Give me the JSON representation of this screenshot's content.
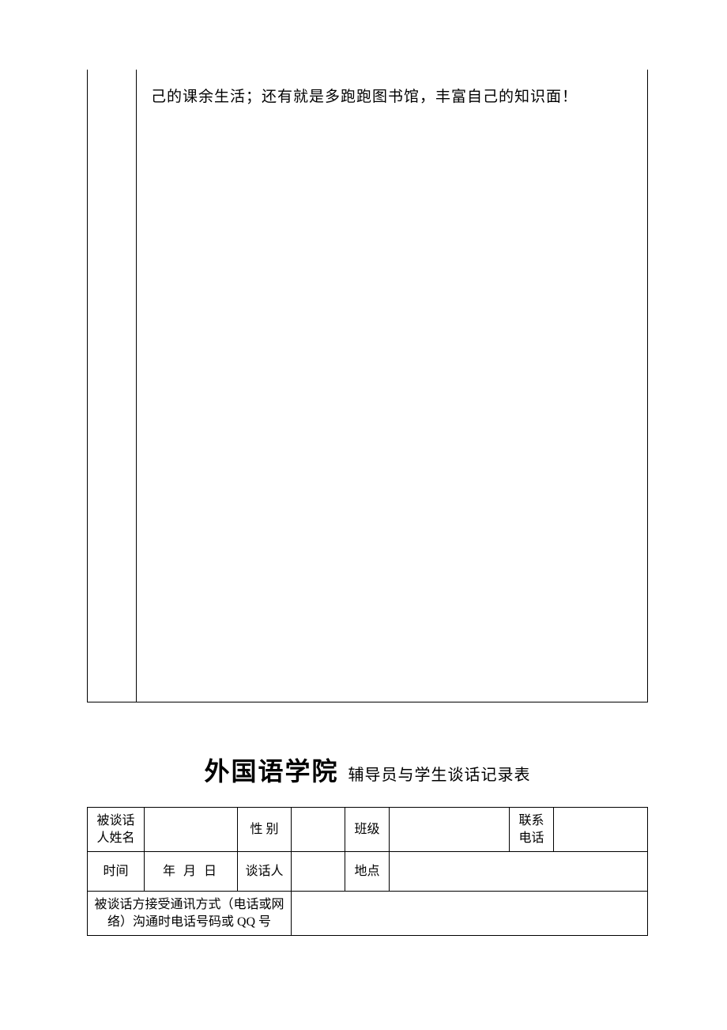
{
  "upper_section": {
    "text": "己的课余生活；还有就是多跑跑图书馆，丰富自己的知识面！"
  },
  "title": {
    "main": "外国语学院",
    "sub": "辅导员与学生谈话记录表"
  },
  "form": {
    "row1": {
      "name_label": "被谈话人姓名",
      "name_value": "",
      "gender_label": "性 别",
      "gender_value": "",
      "class_label": "班级",
      "class_value": "",
      "phone_label": "联系电话",
      "phone_value": ""
    },
    "row2": {
      "time_label": "时间",
      "time_value": "年  月  日",
      "interviewer_label": "谈话人",
      "interviewer_value": "",
      "location_label": "地点",
      "location_value": ""
    },
    "row3": {
      "contact_label": "被谈话方接受通讯方式（电话或网络）沟通时电话号码或 QQ 号",
      "contact_value": ""
    }
  },
  "style": {
    "page_bg": "#ffffff",
    "text_color": "#000000",
    "border_color": "#000000",
    "body_fontsize": 19,
    "title_main_fontsize": 32,
    "title_sub_fontsize": 20,
    "table_fontsize": 16
  }
}
